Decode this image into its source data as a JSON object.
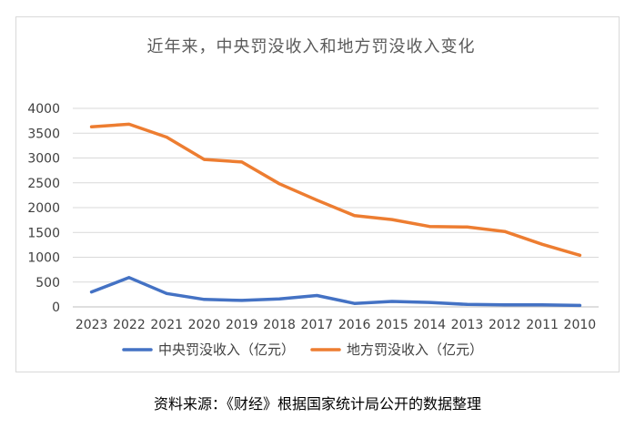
{
  "chart_data": {
    "type": "line",
    "title": "近年来，中央罚没收入和地方罚没收入变化",
    "xlabel": "",
    "ylabel": "",
    "categories": [
      "2023",
      "2022",
      "2021",
      "2020",
      "2019",
      "2018",
      "2017",
      "2016",
      "2015",
      "2014",
      "2013",
      "2012",
      "2011",
      "2010"
    ],
    "ylim": [
      0,
      4000
    ],
    "yticks": [
      0,
      500,
      1000,
      1500,
      2000,
      2500,
      3000,
      3500,
      4000
    ],
    "grid": true,
    "legend_position": "bottom",
    "series": [
      {
        "name": "中央罚没收入（亿元）",
        "color": "#4472c4",
        "values": [
          300,
          590,
          270,
          150,
          130,
          160,
          230,
          70,
          110,
          90,
          50,
          40,
          40,
          30
        ]
      },
      {
        "name": "地方罚没收入（亿元）",
        "color": "#ed7d31",
        "values": [
          3630,
          3680,
          3420,
          2970,
          2920,
          2480,
          2150,
          1840,
          1760,
          1620,
          1610,
          1520,
          1260,
          1040
        ]
      }
    ]
  },
  "source_note": "资料来源：《财经》根据国家统计局公开的数据整理"
}
